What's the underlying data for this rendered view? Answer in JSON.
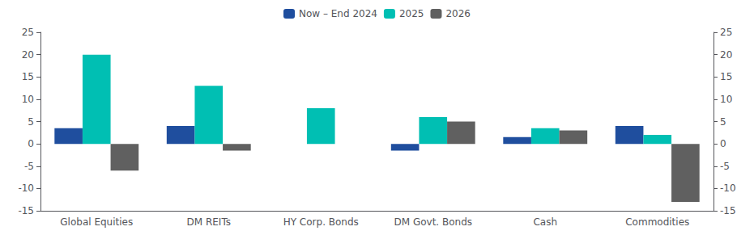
{
  "chart_data": {
    "type": "bar",
    "categories": [
      "Global Equities",
      "DM REITs",
      "HY Corp. Bonds",
      "DM Govt. Bonds",
      "Cash",
      "Commodities"
    ],
    "series": [
      {
        "name": "Now – End 2024",
        "color": "#1f4e9e",
        "values": [
          3.5,
          4.0,
          0.0,
          -1.5,
          1.5,
          4.0
        ]
      },
      {
        "name": "2025",
        "color": "#00bfb3",
        "values": [
          20.0,
          13.0,
          8.0,
          6.0,
          3.5,
          2.0
        ]
      },
      {
        "name": "2026",
        "color": "#606060",
        "values": [
          -6.0,
          -1.5,
          0.0,
          5.0,
          3.0,
          -13.0
        ]
      }
    ],
    "ylim": [
      -15,
      25
    ],
    "yticks": [
      -15,
      -10,
      -5,
      0,
      5,
      10,
      15,
      20,
      25
    ],
    "y2lim": [
      -15,
      25
    ],
    "y2ticks": [
      -15,
      -10,
      -5,
      0,
      5,
      10,
      15,
      20,
      25
    ],
    "grid": false,
    "legend": "top"
  }
}
